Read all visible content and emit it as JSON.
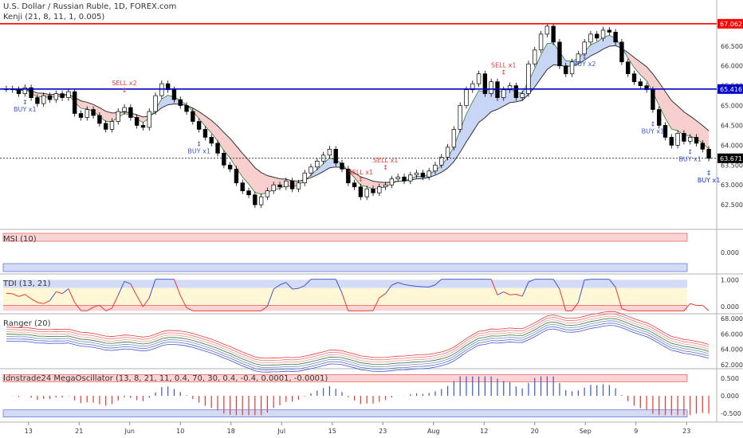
{
  "header": {
    "symbol_line": "U.S. Dollar / Russian Ruble, 1D, FOREX.com",
    "indicator_line": "Kenji (21, 8, 11, 1, 0.005)"
  },
  "colors": {
    "buy": "#3a55d0",
    "sell": "#e53935",
    "resistance": "#ff0000",
    "support": "#0000cc",
    "candle_up": "#ffffff",
    "candle_down": "#000000",
    "cloud_bull": "#c9d5f5",
    "cloud_bear": "#f7cfcf"
  },
  "chart_data": [
    {
      "type": "candlestick",
      "title": "U.S. Dollar / Russian Ruble, 1D, FOREX.com",
      "ylim": [
        62.0,
        67.5
      ],
      "y_ticks": [
        "66.500",
        "66.000",
        "65.500",
        "65.000",
        "64.500",
        "64.000",
        "63.500",
        "63.000",
        "62.500"
      ],
      "x_ticks": [
        "13",
        "21",
        "Jun",
        "10",
        "18",
        "Jul",
        "15",
        "23",
        "Aug",
        "12",
        "20",
        "Sep",
        "9",
        "23"
      ],
      "levels": [
        {
          "label": "67.062",
          "value": 67.062,
          "color": "#ff0000"
        },
        {
          "label": "65.416",
          "value": 65.416,
          "color": "#0000cc"
        },
        {
          "label": "63.671",
          "value": 63.671,
          "color": "#000000"
        }
      ],
      "close_series": [
        65.42,
        65.4,
        65.3,
        65.45,
        65.2,
        65.05,
        65.25,
        65.15,
        65.3,
        65.2,
        65.35,
        64.8,
        64.7,
        64.9,
        64.75,
        64.55,
        64.4,
        64.6,
        64.85,
        64.95,
        64.7,
        64.5,
        64.45,
        64.85,
        65.25,
        65.55,
        65.4,
        65.15,
        65.0,
        64.85,
        64.6,
        64.4,
        64.2,
        64.05,
        63.8,
        63.5,
        63.4,
        63.05,
        62.85,
        62.75,
        62.5,
        62.7,
        62.85,
        63.0,
        62.95,
        63.1,
        62.9,
        63.05,
        63.3,
        63.45,
        63.6,
        63.75,
        63.9,
        63.55,
        63.4,
        63.05,
        62.95,
        62.7,
        62.9,
        62.8,
        62.95,
        63.0,
        63.15,
        63.2,
        63.1,
        63.25,
        63.3,
        63.2,
        63.35,
        63.5,
        63.7,
        63.95,
        64.4,
        65.0,
        65.4,
        65.55,
        65.8,
        65.3,
        65.6,
        65.2,
        65.4,
        65.5,
        65.2,
        65.3,
        66.05,
        66.4,
        66.8,
        67.0,
        66.6,
        66.0,
        65.8,
        66.1,
        66.3,
        66.6,
        66.8,
        66.7,
        66.9,
        66.85,
        66.6,
        66.1,
        65.8,
        65.6,
        65.5,
        65.4,
        64.9,
        64.5,
        64.2,
        64.0,
        64.3,
        64.1,
        64.2,
        64.05,
        63.9,
        63.671
      ],
      "signals": [
        {
          "label": "BUY x1",
          "kind": "buy",
          "i": 3
        },
        {
          "label": "SELL x2",
          "kind": "sell",
          "i": 19
        },
        {
          "label": "BUY x1",
          "kind": "buy",
          "i": 31
        },
        {
          "label": "SELL x1",
          "kind": "sell",
          "i": 61
        },
        {
          "label": "SELL x1",
          "kind": "sell",
          "i": 57
        },
        {
          "label": "SELL x1",
          "kind": "sell",
          "i": 80
        },
        {
          "label": "BUY x2",
          "kind": "buy",
          "i": 93
        },
        {
          "label": "BUY x1",
          "kind": "buy",
          "i": 104
        },
        {
          "label": "BUY x1",
          "kind": "buy",
          "i": 110
        },
        {
          "label": "BUY x1",
          "kind": "buy",
          "i": 114
        },
        {
          "label": "BUY x1",
          "kind": "buy",
          "i": 126
        }
      ]
    },
    {
      "type": "line",
      "title": "MSI (10)",
      "y_ticks": [
        "0.000"
      ],
      "ylim": [
        -1,
        1
      ]
    },
    {
      "type": "line",
      "title": "TDI (13, 21)",
      "y_ticks": [
        "1.000",
        "0.000"
      ],
      "ylim": [
        -0.2,
        1.1
      ]
    },
    {
      "type": "line",
      "title": "Ranger (20)",
      "y_ticks": [
        "68.000",
        "66.000",
        "64.000",
        "62.000"
      ],
      "ylim": [
        61.8,
        68.2
      ]
    },
    {
      "type": "bar",
      "title": "Idnstrade24 MegaOscillator (13, 8, 21, 11, 0.4, 70, 30, 0.4, -0.4, 0.0001, -0.0001)",
      "y_ticks": [
        "0.500",
        "0.000",
        "-0.500"
      ],
      "ylim": [
        -0.7,
        0.7
      ]
    }
  ]
}
